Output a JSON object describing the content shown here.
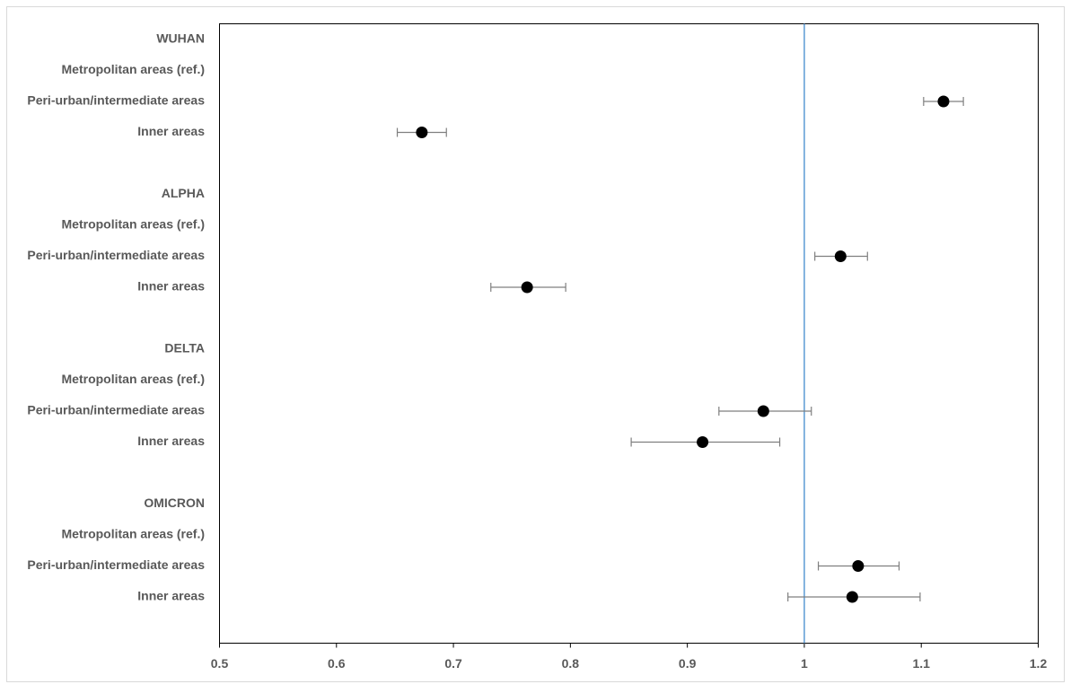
{
  "chart_data": {
    "type": "forest",
    "categories": [
      "WUHAN",
      "Metropolitan areas (ref.)",
      "Peri-urban/intermediate areas",
      "Inner areas",
      null,
      "ALPHA",
      "Metropolitan areas (ref.)",
      "Peri-urban/intermediate areas",
      "Inner areas",
      null,
      "DELTA",
      "Metropolitan areas (ref.)",
      "Peri-urban/intermediate areas",
      "Inner areas",
      null,
      "OMICRON",
      "Metropolitan areas (ref.)",
      "Peri-urban/intermediate areas",
      "Inner areas"
    ],
    "values": [
      null,
      null,
      1.119,
      0.673,
      null,
      null,
      null,
      1.031,
      0.763,
      null,
      null,
      null,
      0.965,
      0.913,
      null,
      null,
      null,
      1.046,
      1.041
    ],
    "ci_low": [
      null,
      null,
      1.102,
      0.652,
      null,
      null,
      null,
      1.009,
      0.732,
      null,
      null,
      null,
      0.927,
      0.852,
      null,
      null,
      null,
      1.012,
      0.986
    ],
    "ci_high": [
      null,
      null,
      1.136,
      0.694,
      null,
      null,
      null,
      1.054,
      0.796,
      null,
      null,
      null,
      1.006,
      0.979,
      null,
      null,
      null,
      1.081,
      1.099
    ],
    "color": "#000000",
    "error_color": "#7f7f7f",
    "reference_line": 1,
    "reference_color": "#5b9bd5",
    "xlim": [
      0.5,
      1.2
    ],
    "xticks": [
      0.5,
      0.6,
      0.7,
      0.8,
      0.9,
      1,
      1.1,
      1.2
    ]
  }
}
